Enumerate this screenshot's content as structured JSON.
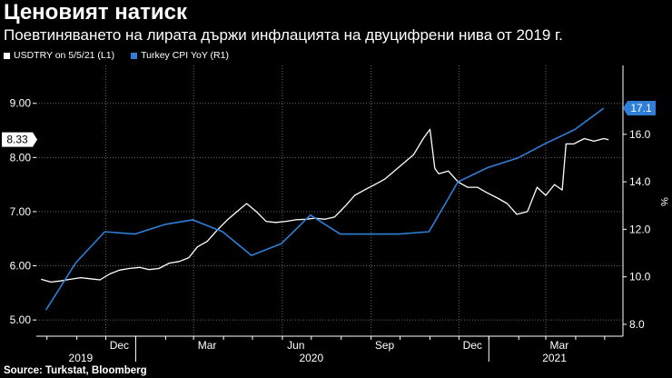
{
  "title": "Ценовият натиск",
  "subtitle": "Поевтиняването на лирата държи инфлацията на двуцифрени нива от 2019 г.",
  "source": "Source: Turkstat, Bloomberg",
  "colors": {
    "background": "#000000",
    "usdtry": "#ffffff",
    "cpi": "#2f7fd9",
    "grid": "#666666"
  },
  "chart_data": {
    "type": "line",
    "x_ticks": [
      "Dec",
      "Mar",
      "Jun",
      "Sep",
      "Dec",
      "Mar"
    ],
    "x_year_labels": [
      "2019",
      "2020",
      "2021"
    ],
    "left_axis": {
      "ticks": [
        "5.00",
        "6.00",
        "7.00",
        "8.00",
        "9.00"
      ],
      "ylim": [
        4.7,
        9.7
      ]
    },
    "right_axis": {
      "label": "%",
      "ticks": [
        "8.0",
        "10.0",
        "12.0",
        "14.0",
        "16.0"
      ],
      "ylim": [
        7.5,
        18.9
      ]
    },
    "grid": true,
    "series": [
      {
        "name": "USDTRY on 5/5/21 (L1)",
        "axis": "left",
        "last_value_label": "8.33",
        "x": [
          "2019-09-25",
          "2019-10-05",
          "2019-10-15",
          "2019-10-25",
          "2019-11-05",
          "2019-11-15",
          "2019-11-25",
          "2019-12-05",
          "2019-12-15",
          "2019-12-25",
          "2020-01-05",
          "2020-01-15",
          "2020-01-25",
          "2020-02-05",
          "2020-02-15",
          "2020-02-25",
          "2020-03-05",
          "2020-03-15",
          "2020-03-25",
          "2020-04-05",
          "2020-04-15",
          "2020-04-25",
          "2020-05-05",
          "2020-05-15",
          "2020-05-25",
          "2020-06-05",
          "2020-06-15",
          "2020-06-25",
          "2020-07-05",
          "2020-07-15",
          "2020-07-25",
          "2020-08-05",
          "2020-08-15",
          "2020-08-25",
          "2020-09-05",
          "2020-09-15",
          "2020-09-25",
          "2020-10-05",
          "2020-10-15",
          "2020-10-25",
          "2020-11-01",
          "2020-11-06",
          "2020-11-10",
          "2020-11-20",
          "2020-11-30",
          "2020-12-10",
          "2020-12-20",
          "2020-12-30",
          "2021-01-10",
          "2021-01-20",
          "2021-01-30",
          "2021-02-10",
          "2021-02-20",
          "2021-03-01",
          "2021-03-10",
          "2021-03-18",
          "2021-03-22",
          "2021-03-30",
          "2021-04-10",
          "2021-04-20",
          "2021-04-30",
          "2021-05-05"
        ],
        "values": [
          5.75,
          5.7,
          5.72,
          5.75,
          5.78,
          5.76,
          5.74,
          5.85,
          5.92,
          5.95,
          5.97,
          5.93,
          5.95,
          6.05,
          6.08,
          6.15,
          6.35,
          6.45,
          6.65,
          6.85,
          7.0,
          7.15,
          7.0,
          6.82,
          6.8,
          6.82,
          6.85,
          6.86,
          6.88,
          6.86,
          6.9,
          7.1,
          7.3,
          7.4,
          7.5,
          7.6,
          7.75,
          7.9,
          8.05,
          8.35,
          8.52,
          7.8,
          7.7,
          7.75,
          7.55,
          7.45,
          7.45,
          7.35,
          7.25,
          7.15,
          6.95,
          7.0,
          7.45,
          7.3,
          7.5,
          7.4,
          8.25,
          8.25,
          8.35,
          8.3,
          8.35,
          8.33
        ]
      },
      {
        "name": "Turkey CPI YoY (R1)",
        "axis": "right",
        "last_value_label": "17.1",
        "x": [
          "2019-09-30",
          "2019-10-31",
          "2019-11-30",
          "2019-12-31",
          "2020-01-31",
          "2020-02-29",
          "2020-03-31",
          "2020-04-30",
          "2020-05-31",
          "2020-06-30",
          "2020-07-31",
          "2020-08-31",
          "2020-09-30",
          "2020-10-31",
          "2020-11-30",
          "2020-12-31",
          "2021-01-31",
          "2021-02-28",
          "2021-03-31",
          "2021-04-30"
        ],
        "values": [
          8.6,
          10.6,
          11.9,
          11.8,
          12.2,
          12.4,
          11.9,
          10.9,
          11.4,
          12.6,
          11.8,
          11.8,
          11.8,
          11.9,
          14.0,
          14.6,
          15.0,
          15.6,
          16.2,
          17.1
        ]
      }
    ]
  }
}
